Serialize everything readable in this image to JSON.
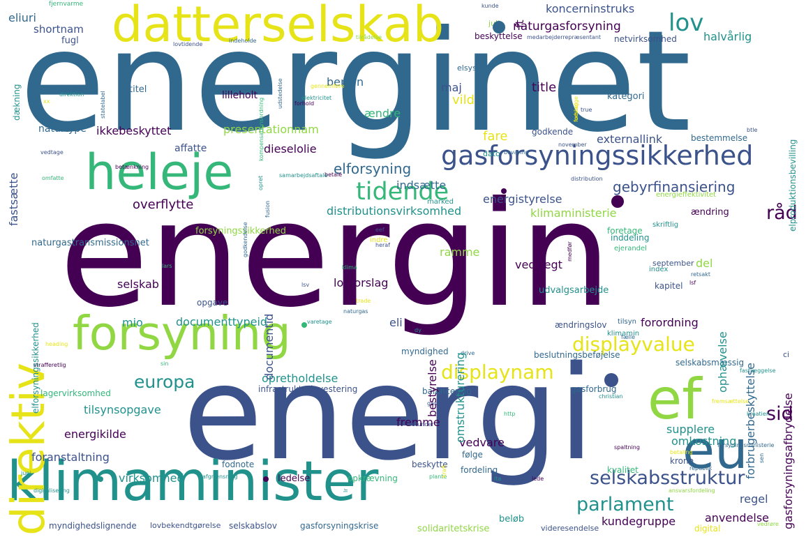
{
  "palette": {
    "dark": "#440154",
    "indigo": "#3b528b",
    "blue": "#31688e",
    "teal": "#21918c",
    "green": "#35b779",
    "lime": "#90d743",
    "yellow": "#e6e419"
  },
  "words": [
    {
      "text": "energinet",
      "color": "blue"
    },
    {
      "text": "energin",
      "color": "dark"
    },
    {
      "text": "energi",
      "color": "indigo"
    },
    {
      "text": "datterselskab",
      "color": "yellow"
    },
    {
      "text": "heleje",
      "color": "green"
    },
    {
      "text": "forsyning",
      "color": "lime"
    },
    {
      "text": "klimaminister",
      "color": "teal"
    },
    {
      "text": "direktiv",
      "color": "yellow"
    },
    {
      "text": "ef",
      "color": "lime"
    },
    {
      "text": "eu",
      "color": "blue"
    },
    {
      "text": "gasforsyningssikkerhed",
      "color": "indigo"
    },
    {
      "text": "tidende",
      "color": "green"
    },
    {
      "text": "displayvalue",
      "color": "yellow"
    },
    {
      "text": "displaynam",
      "color": "yellow"
    },
    {
      "text": "selskabsstruktur",
      "color": "indigo"
    },
    {
      "text": "parlament",
      "color": "teal"
    },
    {
      "text": "europa",
      "color": "teal"
    },
    {
      "text": "lov",
      "color": "teal"
    },
    {
      "text": "råd",
      "color": "dark"
    },
    {
      "text": "sid",
      "color": "dark"
    },
    {
      "text": "gebyrfinansiering",
      "color": "indigo"
    },
    {
      "text": "elforsyning",
      "color": "blue"
    },
    {
      "text": "naturgasforsyning",
      "color": "dark"
    },
    {
      "text": "koncerninstruks",
      "color": "indigo"
    },
    {
      "text": "halvårlig",
      "color": "teal"
    },
    {
      "text": "eliuri",
      "color": "blue"
    },
    {
      "text": "shortnam",
      "color": "indigo"
    },
    {
      "text": "fugl",
      "color": "indigo"
    },
    {
      "text": "benzin",
      "color": "blue"
    },
    {
      "text": "maj",
      "color": "indigo"
    },
    {
      "text": "vild",
      "color": "yellow"
    },
    {
      "text": "ændre",
      "color": "green"
    },
    {
      "text": "lilleholt",
      "color": "dark"
    },
    {
      "text": "titel",
      "color": "blue"
    },
    {
      "text": "title",
      "color": "dark"
    },
    {
      "text": "kategori",
      "color": "blue"
    },
    {
      "text": "fare",
      "color": "yellow"
    },
    {
      "text": "ikkebeskyttet",
      "color": "dark"
    },
    {
      "text": "presentationnam",
      "color": "lime"
    },
    {
      "text": "naturtype",
      "color": "blue"
    },
    {
      "text": "dieselolie",
      "color": "dark"
    },
    {
      "text": "affatte",
      "color": "indigo"
    },
    {
      "text": "godkende",
      "color": "indigo"
    },
    {
      "text": "externallink",
      "color": "indigo"
    },
    {
      "text": "bestemmelse",
      "color": "blue"
    },
    {
      "text": "indsætte",
      "color": "blue"
    },
    {
      "text": "energistyrelse",
      "color": "indigo"
    },
    {
      "text": "overflytte",
      "color": "dark"
    },
    {
      "text": "distributionsvirksomhed",
      "color": "teal"
    },
    {
      "text": "klimaministerie",
      "color": "lime"
    },
    {
      "text": "ændring",
      "color": "dark"
    },
    {
      "text": "forsyningssikkerhed",
      "color": "lime"
    },
    {
      "text": "naturgastransmissionsnet",
      "color": "blue"
    },
    {
      "text": "ramme",
      "color": "lime"
    },
    {
      "text": "vedtægt",
      "color": "dark"
    },
    {
      "text": "del",
      "color": "lime"
    },
    {
      "text": "selskab",
      "color": "dark"
    },
    {
      "text": "lovforslag",
      "color": "dark"
    },
    {
      "text": "kapitel",
      "color": "indigo"
    },
    {
      "text": "opgave",
      "color": "indigo"
    },
    {
      "text": "udvalgsarbejde",
      "color": "teal"
    },
    {
      "text": "september",
      "color": "indigo"
    },
    {
      "text": "mio",
      "color": "teal"
    },
    {
      "text": "documenttypeid",
      "color": "teal"
    },
    {
      "text": "eli",
      "color": "indigo"
    },
    {
      "text": "forordning",
      "color": "dark"
    },
    {
      "text": "ændringslov",
      "color": "indigo"
    },
    {
      "text": "myndighed",
      "color": "blue"
    },
    {
      "text": "beslutningsbeføjelse",
      "color": "blue"
    },
    {
      "text": "selskabsmæssig",
      "color": "blue"
    },
    {
      "text": "opretholdelse",
      "color": "teal"
    },
    {
      "text": "infrastrukturinvestering",
      "color": "indigo"
    },
    {
      "text": "gasforbrug",
      "color": "blue"
    },
    {
      "text": "tilsynsopgave",
      "color": "teal"
    },
    {
      "text": "lagervirksomhed",
      "color": "green"
    },
    {
      "text": "balancering",
      "color": "blue"
    },
    {
      "text": "energikilde",
      "color": "dark"
    },
    {
      "text": "fremme",
      "color": "dark"
    },
    {
      "text": "supplere",
      "color": "teal"
    },
    {
      "text": "omkostning",
      "color": "teal"
    },
    {
      "text": "foranstaltning",
      "color": "indigo"
    },
    {
      "text": "fodnote",
      "color": "blue"
    },
    {
      "text": "beskytte",
      "color": "indigo"
    },
    {
      "text": "vedvare",
      "color": "dark"
    },
    {
      "text": "følge",
      "color": "blue"
    },
    {
      "text": "kvalitet",
      "color": "green"
    },
    {
      "text": "krone",
      "color": "indigo"
    },
    {
      "text": "virksomhed",
      "color": "teal"
    },
    {
      "text": "ledelse",
      "color": "dark"
    },
    {
      "text": "opkrævning",
      "color": "green"
    },
    {
      "text": "fordeling",
      "color": "blue"
    },
    {
      "text": "regel",
      "color": "indigo"
    },
    {
      "text": "anvendelse",
      "color": "dark"
    },
    {
      "text": "kundegruppe",
      "color": "dark"
    },
    {
      "text": "beløb",
      "color": "teal"
    },
    {
      "text": "myndighedslignende",
      "color": "indigo"
    },
    {
      "text": "lovbekendtgørelse",
      "color": "indigo"
    },
    {
      "text": "selskabslov",
      "color": "indigo"
    },
    {
      "text": "gasforsyningskrise",
      "color": "blue"
    },
    {
      "text": "solidaritetskrise",
      "color": "lime"
    },
    {
      "text": "digital",
      "color": "yellow"
    },
    {
      "text": "videresendelse",
      "color": "indigo"
    },
    {
      "text": "netvirksomhed",
      "color": "indigo"
    },
    {
      "text": "beskyttelse",
      "color": "dark"
    },
    {
      "text": "juli",
      "color": "lime"
    },
    {
      "text": "elsystem",
      "color": "blue"
    },
    {
      "text": "dato",
      "color": "teal"
    },
    {
      "text": "marked",
      "color": "teal"
    },
    {
      "text": "foretage",
      "color": "green"
    },
    {
      "text": "inddeling",
      "color": "teal"
    },
    {
      "text": "index",
      "color": "teal"
    },
    {
      "text": "tilsyn",
      "color": "blue"
    },
    {
      "text": "klimamin",
      "color": "teal"
    },
    {
      "text": "fjernvarme",
      "color": "green"
    },
    {
      "text": "kunde",
      "color": "indigo"
    },
    {
      "text": "indeholde",
      "color": "blue"
    },
    {
      "text": "lovtidende",
      "color": "indigo"
    },
    {
      "text": "tilrådelse",
      "color": "lime"
    },
    {
      "text": "medarbejderrepræsentant",
      "color": "indigo"
    },
    {
      "text": "direktion",
      "color": "teal"
    },
    {
      "text": "elektricitet",
      "color": "teal"
    },
    {
      "text": "gennemføre",
      "color": "yellow"
    },
    {
      "text": "forhold",
      "color": "dark"
    },
    {
      "text": "betale",
      "color": "dark"
    },
    {
      "text": "distribution",
      "color": "indigo"
    },
    {
      "text": "energieffektivitet",
      "color": "lime"
    },
    {
      "text": "betænkning",
      "color": "dark"
    },
    {
      "text": "samarbejdsaftale",
      "color": "teal"
    },
    {
      "text": "vedtage",
      "color": "indigo"
    },
    {
      "text": "omfatte",
      "color": "green"
    },
    {
      "text": "november",
      "color": "indigo"
    },
    {
      "text": "skriftlig",
      "color": "teal"
    },
    {
      "text": "ejerandel",
      "color": "green"
    },
    {
      "text": "heraf",
      "color": "indigo"
    },
    {
      "text": "eef",
      "color": "indigo"
    },
    {
      "text": "indre",
      "color": "yellow"
    },
    {
      "text": "retsakt",
      "color": "blue"
    },
    {
      "text": "lsf",
      "color": "dark"
    },
    {
      "text": "lsv",
      "color": "indigo"
    },
    {
      "text": "lars",
      "color": "green"
    },
    {
      "text": "klima",
      "color": "green"
    },
    {
      "text": "trade",
      "color": "yellow"
    },
    {
      "text": "naturgas",
      "color": "blue"
    },
    {
      "text": "varetage",
      "color": "teal"
    },
    {
      "text": "heading",
      "color": "yellow"
    },
    {
      "text": "strafferetlig",
      "color": "dark"
    },
    {
      "text": "drive",
      "color": "blue"
    },
    {
      "text": "sin",
      "color": "green"
    },
    {
      "text": "dy",
      "color": "teal"
    },
    {
      "text": "fælle",
      "color": "blue"
    },
    {
      "text": "christian",
      "color": "teal"
    },
    {
      "text": "fastlæggelse",
      "color": "teal"
    },
    {
      "text": "ci",
      "color": "indigo"
    },
    {
      "text": "kroatien",
      "color": "teal"
    },
    {
      "text": "fremsættelse",
      "color": "yellow"
    },
    {
      "text": "http",
      "color": "green"
    },
    {
      "text": "gas",
      "color": "indigo"
    },
    {
      "text": "herunder",
      "color": "indigo"
    },
    {
      "text": "spaltning",
      "color": "dark"
    },
    {
      "text": "betaling",
      "color": "yellow"
    },
    {
      "text": "forsyningsministerie",
      "color": "blue"
    },
    {
      "text": "republik",
      "color": "blue"
    },
    {
      "text": "afgrænsning",
      "color": "teal"
    },
    {
      "text": "plante",
      "color": "green"
    },
    {
      "text": "lede",
      "color": "dark"
    },
    {
      "text": "lta",
      "color": "teal"
    },
    {
      "text": "ansvarsfordeling",
      "color": "lime"
    },
    {
      "text": "vedrøre",
      "color": "lime"
    },
    {
      "text": "juni",
      "color": "teal"
    },
    {
      "text": "digitalisering",
      "color": "teal"
    },
    {
      "text": "btle",
      "color": "indigo"
    },
    {
      "text": "true",
      "color": "indigo"
    },
    {
      "text": "bevaring",
      "color": "blue"
    },
    {
      "text": "opret",
      "color": "teal"
    },
    {
      "text": "ft",
      "color": "dark"
    },
    {
      "text": "fastsætte",
      "color": "indigo"
    },
    {
      "text": "dækning",
      "color": "teal"
    },
    {
      "text": "udstede",
      "color": "blue"
    },
    {
      "text": "statelabel",
      "color": "blue"
    },
    {
      "text": "kompensationsordning",
      "color": "green"
    },
    {
      "text": "udstedelse",
      "color": "blue"
    },
    {
      "text": "fusion",
      "color": "blue"
    },
    {
      "text": "godkendelse",
      "color": "blue"
    },
    {
      "text": "elforsyningssikkerhed",
      "color": "teal"
    },
    {
      "text": "omstrukturering",
      "color": "teal"
    },
    {
      "text": "documentid",
      "color": "indigo"
    },
    {
      "text": "bestyrelse",
      "color": "dark"
    },
    {
      "text": "ophævelse",
      "color": "teal"
    },
    {
      "text": "forbrugerbeskyttelse",
      "color": "blue"
    },
    {
      "text": "gasforsyningsafbrydelse",
      "color": "dark"
    },
    {
      "text": "elproduktionsbevilling",
      "color": "teal"
    },
    {
      "text": "medfør",
      "color": "dark"
    },
    {
      "text": "kraft",
      "color": "yellow"
    },
    {
      "text": "forslag",
      "color": "yellow"
    },
    {
      "text": "udvælge",
      "color": "yellow"
    },
    {
      "text": "xx",
      "color": "yellow"
    },
    {
      "text": "sen",
      "color": "blue"
    },
    {
      "text": "lr",
      "color": "teal"
    }
  ]
}
